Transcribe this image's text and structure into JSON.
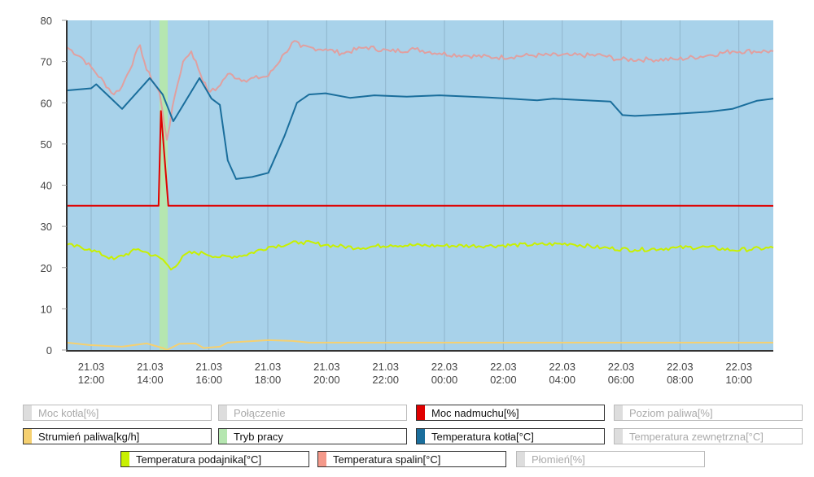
{
  "chart_data": {
    "type": "line",
    "title": "",
    "xlabel": "",
    "ylabel": "",
    "ylim": [
      0,
      80
    ],
    "yticks": [
      "0",
      "10",
      "20",
      "30",
      "40",
      "50",
      "60",
      "70",
      "80"
    ],
    "x_unit": "hours since 21.03 00:00",
    "xlim": [
      11.17,
      35.17
    ],
    "xticks": [
      {
        "h": 12,
        "date": "21.03",
        "time": "12:00"
      },
      {
        "h": 14,
        "date": "21.03",
        "time": "14:00"
      },
      {
        "h": 16,
        "date": "21.03",
        "time": "16:00"
      },
      {
        "h": 18,
        "date": "21.03",
        "time": "18:00"
      },
      {
        "h": 20,
        "date": "21.03",
        "time": "20:00"
      },
      {
        "h": 22,
        "date": "21.03",
        "time": "22:00"
      },
      {
        "h": 24,
        "date": "22.03",
        "time": "00:00"
      },
      {
        "h": 26,
        "date": "22.03",
        "time": "02:00"
      },
      {
        "h": 28,
        "date": "22.03",
        "time": "04:00"
      },
      {
        "h": 30,
        "date": "22.03",
        "time": "06:00"
      },
      {
        "h": 32,
        "date": "22.03",
        "time": "08:00"
      },
      {
        "h": 34,
        "date": "22.03",
        "time": "10:00"
      }
    ],
    "grid": true,
    "background": "#a8d2ea",
    "tryb_pracy_band": {
      "from": 14.32,
      "to": 14.6,
      "color": "#b5e6b0"
    },
    "series": [
      {
        "name": "Temperatura spalin[°C]",
        "color": "#e0a0a0",
        "points": [
          [
            11.17,
            73.5
          ],
          [
            11.67,
            71
          ],
          [
            12.08,
            68
          ],
          [
            12.77,
            62
          ],
          [
            13.05,
            64
          ],
          [
            13.66,
            74
          ],
          [
            13.88,
            68
          ],
          [
            14.32,
            62.5
          ],
          [
            14.57,
            51
          ],
          [
            14.85,
            62
          ],
          [
            15.12,
            70
          ],
          [
            15.4,
            72.5
          ],
          [
            15.95,
            63
          ],
          [
            16.22,
            63
          ],
          [
            16.64,
            67
          ],
          [
            17.19,
            65.5
          ],
          [
            18.02,
            66.5
          ],
          [
            18.57,
            72
          ],
          [
            18.9,
            75
          ],
          [
            19.12,
            73.5
          ],
          [
            19.96,
            73
          ],
          [
            20.51,
            72
          ],
          [
            21.34,
            73.5
          ],
          [
            22.17,
            72.5
          ],
          [
            23,
            73
          ],
          [
            23.83,
            72
          ],
          [
            24.66,
            71.5
          ],
          [
            25.77,
            71
          ],
          [
            26.87,
            71.5
          ],
          [
            28.26,
            71.5
          ],
          [
            29.36,
            71.5
          ],
          [
            29.91,
            70.5
          ],
          [
            31.02,
            70.5
          ],
          [
            31.85,
            70.5
          ],
          [
            32.95,
            71.5
          ],
          [
            33.78,
            72.5
          ],
          [
            35.17,
            72.5
          ]
        ],
        "jitter": 0.6
      },
      {
        "name": "Temperatura kotła[°C]",
        "color": "#1a6e9c",
        "points": [
          [
            11.17,
            63
          ],
          [
            12,
            63.5
          ],
          [
            12.17,
            64.5
          ],
          [
            13.05,
            58.5
          ],
          [
            13.99,
            66
          ],
          [
            14.43,
            62
          ],
          [
            14.79,
            55.5
          ],
          [
            15.68,
            66
          ],
          [
            16.09,
            61
          ],
          [
            16.37,
            59.5
          ],
          [
            16.64,
            46
          ],
          [
            16.92,
            41.5
          ],
          [
            17.47,
            42
          ],
          [
            18.02,
            43
          ],
          [
            18.57,
            52
          ],
          [
            18.99,
            60
          ],
          [
            19.4,
            62
          ],
          [
            19.96,
            62.3
          ],
          [
            20.79,
            61.2
          ],
          [
            21.62,
            61.8
          ],
          [
            22.72,
            61.5
          ],
          [
            23.83,
            61.8
          ],
          [
            25.49,
            61.3
          ],
          [
            27.15,
            60.6
          ],
          [
            27.7,
            61
          ],
          [
            28.26,
            60.8
          ],
          [
            29.64,
            60.3
          ],
          [
            30.05,
            57
          ],
          [
            30.47,
            56.8
          ],
          [
            31.02,
            57
          ],
          [
            31.85,
            57.3
          ],
          [
            32.95,
            57.8
          ],
          [
            33.78,
            58.5
          ],
          [
            34.62,
            60.5
          ],
          [
            35.17,
            61
          ]
        ],
        "jitter": 0
      },
      {
        "name": "Moc nadmuchu[%]",
        "color": "#e00000",
        "points": [
          [
            11.17,
            35
          ],
          [
            14.29,
            35
          ],
          [
            14.37,
            58
          ],
          [
            14.62,
            35
          ],
          [
            35.17,
            35
          ]
        ],
        "jitter": 0
      },
      {
        "name": "Temperatura podajnika[°C]",
        "color": "#c8f000",
        "points": [
          [
            11.17,
            25.5
          ],
          [
            11.94,
            24.5
          ],
          [
            12.77,
            22
          ],
          [
            13.6,
            24.5
          ],
          [
            14.43,
            22
          ],
          [
            14.71,
            19.5
          ],
          [
            15.26,
            23.5
          ],
          [
            15.82,
            23.5
          ],
          [
            16.37,
            22.5
          ],
          [
            17.2,
            23
          ],
          [
            18.02,
            25
          ],
          [
            19.13,
            26.2
          ],
          [
            19.96,
            25.5
          ],
          [
            21.07,
            24.8
          ],
          [
            22.17,
            25.5
          ],
          [
            23.83,
            25.3
          ],
          [
            25.49,
            25.3
          ],
          [
            27.15,
            25.6
          ],
          [
            28.26,
            25.8
          ],
          [
            29.36,
            24.8
          ],
          [
            30.47,
            24.3
          ],
          [
            31.85,
            24.8
          ],
          [
            32.95,
            25
          ],
          [
            33.78,
            24.2
          ],
          [
            35.17,
            24.8
          ]
        ],
        "jitter": 0.5
      },
      {
        "name": "Strumień paliwa[kg/h]",
        "color": "#f5d070",
        "points": [
          [
            11.17,
            1.8
          ],
          [
            11.94,
            1.2
          ],
          [
            13.05,
            0.8
          ],
          [
            13.88,
            1.6
          ],
          [
            14.43,
            0.5
          ],
          [
            14.57,
            0
          ],
          [
            14.99,
            1.5
          ],
          [
            15.54,
            1.6
          ],
          [
            15.82,
            0.5
          ],
          [
            16.37,
            0.8
          ],
          [
            16.64,
            1.8
          ],
          [
            18.02,
            2.4
          ],
          [
            18.85,
            2.2
          ],
          [
            19.4,
            1.8
          ],
          [
            35.17,
            1.8
          ]
        ],
        "jitter": 0
      }
    ]
  },
  "legend": [
    {
      "label": "Moc kotła[%]",
      "color": "#dddddd",
      "active": false
    },
    {
      "label": "Połączenie",
      "color": "#dddddd",
      "active": false
    },
    {
      "label": "Moc nadmuchu[%]",
      "color": "#e00000",
      "active": true
    },
    {
      "label": "Poziom paliwa[%]",
      "color": "#dddddd",
      "active": false
    },
    {
      "label": "Strumień paliwa[kg/h]",
      "color": "#f5d070",
      "active": true
    },
    {
      "label": "Tryb pracy",
      "color": "#b5e6b0",
      "active": true
    },
    {
      "label": "Temperatura kotła[°C]",
      "color": "#1a6e9c",
      "active": true
    },
    {
      "label": "Temperatura zewnętrzna[°C]",
      "color": "#dddddd",
      "active": false
    },
    {
      "label": "Temperatura podajnika[°C]",
      "color": "#c8f000",
      "active": true
    },
    {
      "label": "Temperatura spalin[°C]",
      "color": "#f4998a",
      "active": true
    },
    {
      "label": "Płomień[%]",
      "color": "#dddddd",
      "active": false
    }
  ]
}
